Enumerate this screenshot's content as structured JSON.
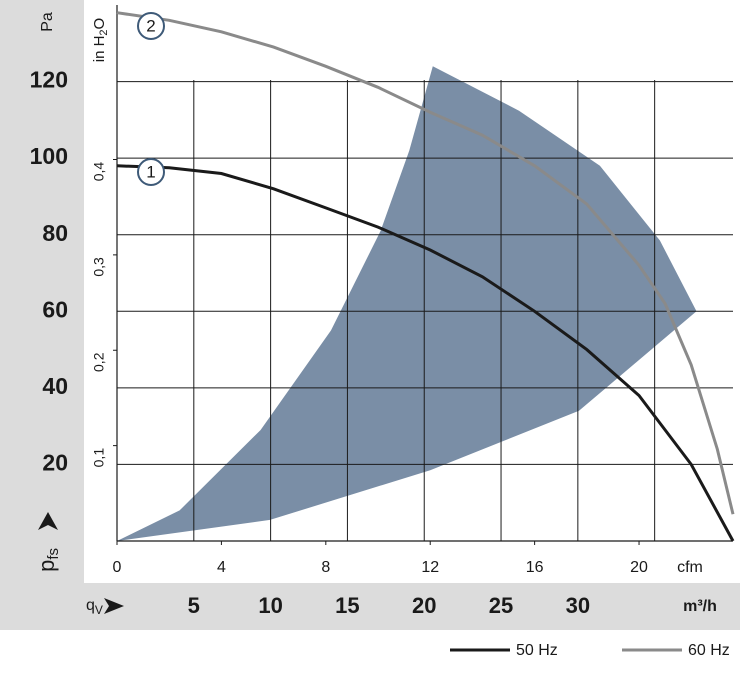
{
  "chart_data": {
    "type": "line",
    "ylabel": "Pa",
    "ylabel_main": "p",
    "ylabel_sub": "fs",
    "y2label_main": "in H",
    "y2label_sub": "2",
    "y2label_end": "O",
    "xlabel": "cfm",
    "x2label_main": "q",
    "x2label_sub": "V",
    "x2label": "m³/h",
    "xlim": [
      0,
      23.6
    ],
    "xticks": [
      0,
      4,
      8,
      12,
      16,
      20
    ],
    "x2lim": [
      0,
      40.1
    ],
    "x2ticks": [
      5,
      10,
      15,
      20,
      25,
      30
    ],
    "x2grid": [
      5,
      10,
      15,
      20,
      25,
      30,
      35
    ],
    "ylim": [
      0,
      140
    ],
    "yticks": [
      20,
      40,
      60,
      80,
      100,
      120
    ],
    "y2lim": [
      0,
      0.562
    ],
    "y2ticks": [
      {
        "value": 0.1,
        "label": "0,1"
      },
      {
        "value": 0.2,
        "label": "0,2"
      },
      {
        "value": 0.3,
        "label": "0,3"
      },
      {
        "value": 0.4,
        "label": "0,4"
      }
    ],
    "grid": true,
    "operating_range": {
      "color": "#7a8ea6",
      "x": [
        0,
        5.86,
        12,
        17.7,
        22.2,
        20.8,
        18.5,
        15.4,
        12.1,
        11.2,
        10.1,
        8.2,
        5.5,
        2.4
      ],
      "values": [
        0,
        5.5,
        18.5,
        34,
        60,
        78.5,
        98,
        112.4,
        124,
        102,
        81,
        55,
        29,
        8
      ]
    },
    "series": [
      {
        "name": "50 Hz",
        "label": "1",
        "color": "#1a1a1a",
        "x": [
          0,
          2,
          4,
          6,
          8,
          10,
          12,
          14,
          16,
          18,
          20,
          22,
          23.6
        ],
        "values": [
          98,
          97.5,
          96,
          92,
          87,
          82,
          76,
          69,
          60,
          50,
          38,
          20,
          0
        ]
      },
      {
        "name": "60 Hz",
        "label": "2",
        "color": "#8a8a8a",
        "x": [
          0,
          2,
          4,
          6,
          8,
          10,
          12,
          14,
          16,
          18,
          20,
          21,
          22,
          23,
          23.6
        ],
        "values": [
          138,
          136,
          133,
          129,
          124,
          118.5,
          112,
          106,
          98,
          88,
          72,
          62,
          46,
          24,
          7
        ]
      }
    ]
  }
}
